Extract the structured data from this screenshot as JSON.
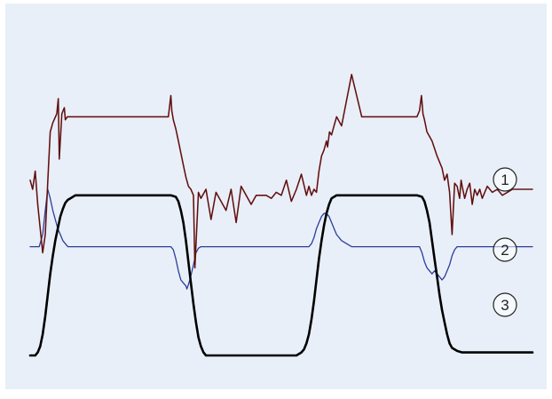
{
  "chart_data": {
    "type": "line",
    "title": "",
    "xlabel": "",
    "ylabel": "",
    "grid": false,
    "legend": "none",
    "xlim": [
      0,
      100
    ],
    "ylim": [
      0,
      100
    ],
    "colors": {
      "background": "#e8eff8",
      "series_1": "#8b1a1a",
      "series_1_overlay": "#2a0f0f",
      "series_2": "#2c3c9e",
      "series_3": "#000000",
      "marker_stroke": "#222222",
      "marker_fill": "#ffffff"
    },
    "series": [
      {
        "x": [
          0,
          0.5,
          1,
          1.5,
          2,
          2.5,
          3,
          3.6,
          4,
          4.5,
          5.3,
          5.6,
          5.8,
          6.3,
          6.8,
          7,
          7.4,
          7.6,
          8,
          9,
          10,
          12,
          14,
          16,
          18,
          20,
          22,
          24,
          26,
          27.5,
          28,
          28.2,
          28.5,
          29,
          29.5,
          30,
          30.5,
          31,
          31.5,
          32,
          32.5,
          32.8,
          33.5,
          34,
          35,
          36,
          37,
          38,
          39,
          40,
          41,
          42,
          43,
          44,
          45,
          46,
          47,
          48,
          49,
          50,
          51,
          52,
          53,
          54,
          55,
          55.5,
          56,
          56.5,
          57,
          57.5,
          58,
          58.5,
          59,
          59.2,
          59.6,
          60,
          60.5,
          61,
          62,
          64,
          66,
          68,
          70,
          72,
          74,
          76,
          77,
          77.5,
          77.9,
          78.2,
          78.5,
          79,
          80,
          81,
          82,
          82.5,
          83,
          83.5,
          84,
          84.5,
          85,
          85.5,
          85.8,
          86,
          86.5,
          87,
          87.5,
          88,
          88.5,
          89,
          89.5,
          90,
          91,
          92,
          93,
          94,
          95,
          96,
          97,
          98,
          99,
          100
        ],
        "y": [
          58,
          55,
          61,
          50,
          42,
          34,
          40,
          61,
          74,
          77,
          80,
          85,
          65,
          80,
          82,
          78,
          79,
          79,
          79,
          79,
          79,
          79,
          79,
          79,
          79,
          79,
          79,
          79,
          79,
          79,
          86,
          81,
          78,
          75,
          71,
          67,
          63,
          59,
          56,
          55,
          53,
          29,
          54,
          52,
          55,
          45,
          54,
          51,
          48,
          55,
          44,
          56,
          53,
          50,
          53,
          53,
          53,
          52,
          54,
          53,
          58,
          51,
          55,
          60,
          53,
          56,
          53,
          55,
          54,
          61,
          66,
          68,
          71,
          69,
          74,
          73,
          76,
          79,
          76,
          93,
          79,
          79,
          79,
          79,
          79,
          79,
          79,
          81,
          86,
          80,
          78,
          74,
          71,
          66,
          62,
          58,
          60,
          54,
          40,
          57,
          56,
          52,
          58,
          56,
          52,
          55,
          57,
          50,
          55,
          53,
          55,
          52,
          56,
          54,
          55,
          53,
          54,
          55,
          55,
          55,
          55,
          55
        ]
      },
      {
        "x": [
          0,
          1,
          1.8,
          2.5,
          3,
          3.5,
          4,
          4.5,
          5,
          5.5,
          6,
          6.5,
          7,
          7.5,
          8,
          9,
          10,
          12,
          14,
          16,
          18,
          20,
          22,
          24,
          26,
          28,
          28.5,
          29,
          29.5,
          30,
          30.5,
          31,
          31.2,
          31.8,
          32.5,
          33,
          33.5,
          34,
          35,
          40,
          45,
          50,
          52,
          53,
          54,
          55,
          55.5,
          56,
          56.5,
          57,
          57.5,
          58,
          58.5,
          59,
          59.5,
          60,
          60.5,
          61,
          62,
          64,
          66,
          68,
          70,
          72,
          74,
          76,
          77,
          77.5,
          78,
          78.5,
          79,
          79.5,
          80,
          80.5,
          81,
          81.5,
          82,
          82.5,
          83,
          83.5,
          84,
          84.5,
          85,
          85.5,
          86,
          87,
          88,
          90,
          95,
          100
        ],
        "y": [
          36,
          36,
          36,
          40,
          48,
          55,
          52,
          48,
          45,
          42,
          40,
          38,
          37,
          36,
          36,
          36,
          36,
          36,
          36,
          36,
          36,
          36,
          36,
          36,
          36,
          36,
          35,
          32,
          28,
          25,
          24,
          23,
          22,
          25,
          30,
          34,
          35.5,
          36,
          36,
          36,
          36,
          36,
          36,
          36,
          36,
          36,
          36,
          37,
          39,
          42,
          44,
          46,
          47,
          47,
          46,
          44,
          42,
          40,
          38,
          36,
          36,
          36,
          36,
          36,
          36,
          36,
          36,
          36,
          34,
          31,
          29,
          28,
          27,
          28,
          27,
          26,
          25,
          26,
          28,
          30,
          33,
          35,
          36,
          36,
          36,
          36,
          36,
          36,
          36,
          36
        ]
      },
      {
        "x": [
          0,
          1,
          1.5,
          2,
          2.5,
          3,
          3.5,
          4,
          4.5,
          5,
          5.5,
          6,
          6.5,
          7,
          7.5,
          8,
          8.5,
          9,
          10,
          12,
          15,
          20,
          25,
          28,
          29,
          29.5,
          30,
          30.5,
          31,
          31.5,
          32,
          32.5,
          33,
          33.5,
          34,
          34.5,
          35,
          36,
          40,
          45,
          50,
          53,
          54,
          54.5,
          55,
          55.5,
          56,
          56.5,
          57,
          57.5,
          58,
          58.5,
          59,
          59.5,
          60,
          60.5,
          61,
          62,
          65,
          70,
          75,
          77,
          78,
          78.5,
          79,
          79.5,
          80,
          80.5,
          81,
          81.5,
          82,
          82.5,
          83,
          83.5,
          84,
          85,
          86,
          88,
          90,
          95,
          100
        ],
        "y": [
          0,
          0,
          1,
          3,
          7,
          13,
          20,
          27,
          33,
          38,
          42,
          46,
          48.5,
          50.5,
          51.5,
          52,
          52.5,
          53,
          53,
          53,
          53,
          53,
          53,
          53,
          52.5,
          51,
          48,
          44,
          38,
          31,
          24,
          17,
          11,
          6,
          3,
          1,
          0,
          0,
          0,
          0,
          0,
          0,
          1,
          2,
          4,
          7,
          12,
          18,
          25,
          32,
          38,
          43,
          47,
          50,
          52,
          52.5,
          53,
          53,
          53,
          53,
          53,
          53,
          52.5,
          51,
          48,
          44,
          38,
          32,
          26,
          20,
          15,
          11,
          7,
          4,
          2.5,
          1.5,
          1,
          1,
          1,
          1,
          1
        ]
      }
    ],
    "markers": [
      {
        "label": "1",
        "series": 1
      },
      {
        "label": "2",
        "series": 2
      },
      {
        "label": "3",
        "series": 3
      }
    ]
  }
}
